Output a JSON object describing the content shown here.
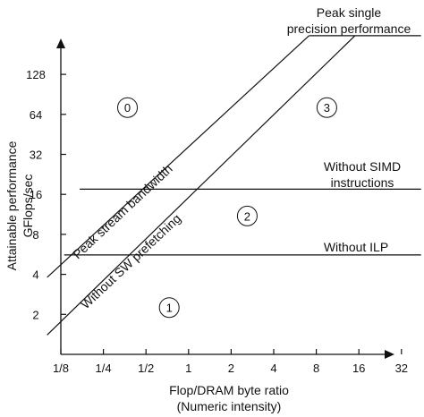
{
  "chart_data": {
    "type": "line",
    "title": "",
    "xlabel": [
      "Flop/DRAM byte ratio",
      "(Numeric intensity)"
    ],
    "ylabel": [
      "Attainable performance",
      "GFlops/sec"
    ],
    "xscale": "log2",
    "yscale": "log2",
    "xlim": [
      0.125,
      50
    ],
    "ylim": [
      1,
      256
    ],
    "x_ticks": [
      0.125,
      0.25,
      0.5,
      1,
      2,
      4,
      8,
      16,
      32
    ],
    "x_tick_labels": [
      "1/8",
      "1/4",
      "1/2",
      "1",
      "2",
      "4",
      "8",
      "16",
      "32"
    ],
    "y_ticks": [
      2,
      4,
      8,
      16,
      32,
      64,
      128
    ],
    "y_tick_labels": [
      "2",
      "4",
      "8",
      "16",
      "32",
      "64",
      "128"
    ],
    "grid": false,
    "series": [
      {
        "name": "Peak stream bandwidth",
        "x": [
          0.1,
          7.1
        ],
        "y": [
          3.8,
          250
        ]
      },
      {
        "name": "Without SW prefetching",
        "x": [
          0.1,
          15
        ],
        "y": [
          1.4,
          250
        ]
      },
      {
        "name": "Peak single precision performance",
        "x": [
          7.1,
          44
        ],
        "y": [
          250,
          250
        ]
      },
      {
        "name": "Without SIMD instructions",
        "x": [
          0.17,
          44
        ],
        "y": [
          17.5,
          17.5
        ]
      },
      {
        "name": "Without ILP",
        "x": [
          0.132,
          44
        ],
        "y": [
          5.6,
          5.6
        ]
      }
    ],
    "annotations": {
      "peak_label": [
        "Peak single",
        "precision performance"
      ],
      "simd_label": [
        "Without SIMD",
        "instructions"
      ],
      "ilp_label": "Without ILP",
      "bandwidth_label": "Peak stream bandwidth",
      "prefetch_label": "Without SW prefetching"
    },
    "regions": [
      {
        "label": "0",
        "x": 0.37,
        "y": 72
      },
      {
        "label": "3",
        "x": 9.5,
        "y": 72
      },
      {
        "label": "2",
        "x": 2.6,
        "y": 11
      },
      {
        "label": "1",
        "x": 0.73,
        "y": 2.25
      }
    ]
  }
}
